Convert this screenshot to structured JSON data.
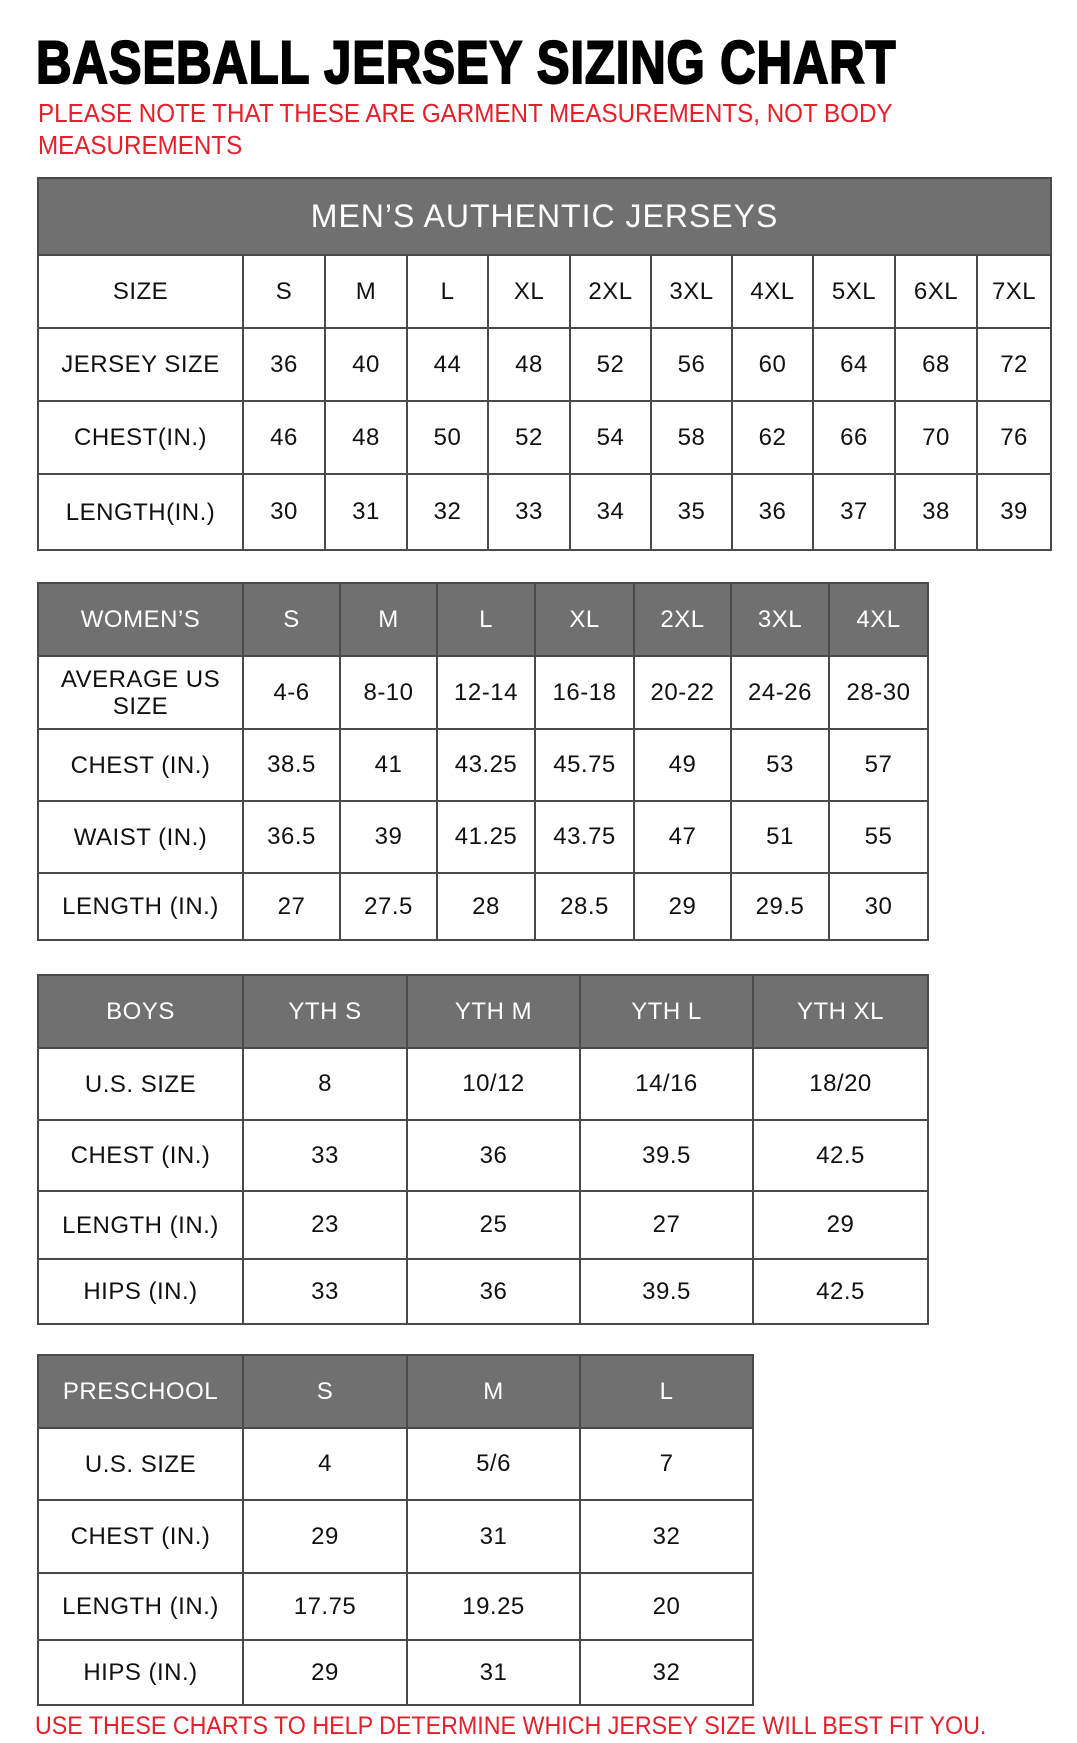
{
  "title": "BASEBALL JERSEY SIZING CHART",
  "note": "PLEASE NOTE THAT THESE ARE GARMENT MEASUREMENTS, NOT BODY MEASUREMENTS",
  "footer": "USE THESE CHARTS TO HELP DETERMINE WHICH JERSEY SIZE WILL BEST FIT YOU.",
  "colors": {
    "header_bg": "#707070",
    "accent_red": "#e3202b"
  },
  "tables": [
    {
      "id": "mens",
      "banner": "MEN’S AUTHENTIC JERSEYS",
      "header": [
        "SIZE",
        "S",
        "M",
        "L",
        "XL",
        "2XL",
        "3XL",
        "4XL",
        "5XL",
        "6XL",
        "7XL"
      ],
      "header_style": "plain",
      "rows": [
        [
          "JERSEY SIZE",
          "36",
          "40",
          "44",
          "48",
          "52",
          "56",
          "60",
          "64",
          "68",
          "72"
        ],
        [
          "CHEST(IN.)",
          "46",
          "48",
          "50",
          "52",
          "54",
          "58",
          "62",
          "66",
          "70",
          "76"
        ],
        [
          "LENGTH(IN.)",
          "30",
          "31",
          "32",
          "33",
          "34",
          "35",
          "36",
          "37",
          "38",
          "39"
        ]
      ]
    },
    {
      "id": "womens",
      "header": [
        "WOMEN’S",
        "S",
        "M",
        "L",
        "XL",
        "2XL",
        "3XL",
        "4XL"
      ],
      "header_style": "gray",
      "rows": [
        [
          "AVERAGE US SIZE",
          "4-6",
          "8-10",
          "12-14",
          "16-18",
          "20-22",
          "24-26",
          "28-30"
        ],
        [
          "CHEST (IN.)",
          "38.5",
          "41",
          "43.25",
          "45.75",
          "49",
          "53",
          "57"
        ],
        [
          "WAIST (IN.)",
          "36.5",
          "39",
          "41.25",
          "43.75",
          "47",
          "51",
          "55"
        ],
        [
          "LENGTH (IN.)",
          "27",
          "27.5",
          "28",
          "28.5",
          "29",
          "29.5",
          "30"
        ]
      ]
    },
    {
      "id": "boys",
      "header": [
        "BOYS",
        "YTH S",
        "YTH M",
        "YTH L",
        "YTH XL"
      ],
      "header_style": "gray",
      "rows": [
        [
          "U.S. SIZE",
          "8",
          "10/12",
          "14/16",
          "18/20"
        ],
        [
          "CHEST (IN.)",
          "33",
          "36",
          "39.5",
          "42.5"
        ],
        [
          "LENGTH (IN.)",
          "23",
          "25",
          "27",
          "29"
        ],
        [
          "HIPS (IN.)",
          "33",
          "36",
          "39.5",
          "42.5"
        ]
      ]
    },
    {
      "id": "preschool",
      "header": [
        "PRESCHOOL",
        "S",
        "M",
        "L"
      ],
      "header_style": "gray",
      "rows": [
        [
          "U.S. SIZE",
          "4",
          "5/6",
          "7"
        ],
        [
          "CHEST (IN.)",
          "29",
          "31",
          "32"
        ],
        [
          "LENGTH (IN.)",
          "17.75",
          "19.25",
          "20"
        ],
        [
          "HIPS (IN.)",
          "29",
          "31",
          "32"
        ]
      ]
    }
  ]
}
